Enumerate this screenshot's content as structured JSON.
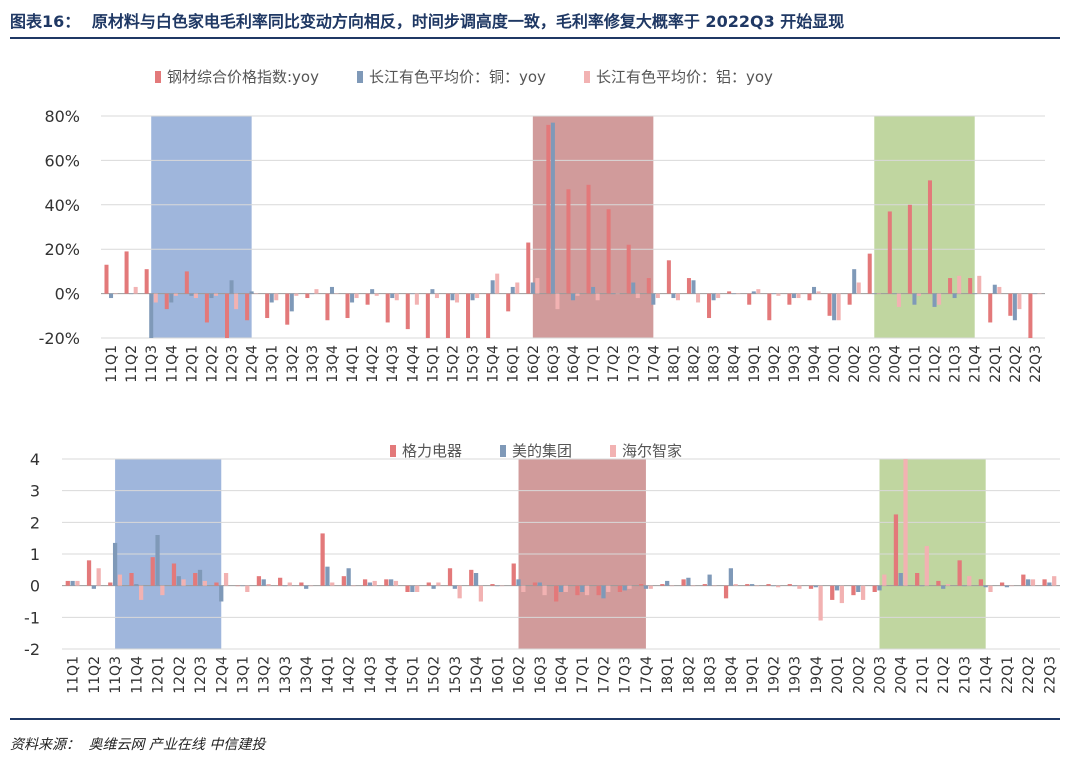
{
  "header": {
    "label": "图表16：",
    "title": "原材料与白色家电毛利率同比变动方向相反，时间步调高度一致，毛利率修复大概率于 2022Q3 开始显现"
  },
  "footer": {
    "label": "资料来源：",
    "sources": "奥维云网  产业在线  中信建投"
  },
  "chart_data": [
    {
      "type": "bar",
      "legend_position": "top",
      "grid": true,
      "ylim": [
        -0.2,
        0.8
      ],
      "yticks": [
        -0.2,
        0,
        0.2,
        0.4,
        0.6,
        0.8
      ],
      "ytick_labels": [
        "-20%",
        "0%",
        "20%",
        "40%",
        "60%",
        "80%"
      ],
      "categories": [
        "11Q1",
        "11Q2",
        "11Q3",
        "11Q4",
        "12Q1",
        "12Q2",
        "12Q3",
        "12Q4",
        "13Q1",
        "13Q2",
        "13Q3",
        "13Q4",
        "14Q1",
        "14Q2",
        "14Q3",
        "14Q4",
        "15Q1",
        "15Q2",
        "15Q3",
        "15Q4",
        "16Q1",
        "16Q2",
        "16Q3",
        "16Q4",
        "17Q1",
        "17Q2",
        "17Q3",
        "17Q4",
        "18Q1",
        "18Q2",
        "18Q3",
        "18Q4",
        "19Q1",
        "19Q2",
        "19Q3",
        "19Q4",
        "20Q1",
        "20Q2",
        "20Q3",
        "20Q4",
        "21Q1",
        "21Q2",
        "21Q3",
        "21Q4",
        "22Q1",
        "22Q2",
        "22Q3"
      ],
      "xtick_labels": [
        "11Q1",
        "11Q2",
        "11Q3",
        "11Q4",
        "12Q1",
        "12Q2",
        "12Q3",
        "12Q4",
        "13Q1",
        "13Q2",
        "13Q3",
        "13Q4",
        "14Q1",
        "14Q2",
        "14Q3",
        "14Q4",
        "15Q1",
        "15Q2",
        "15Q3",
        "15Q4",
        "16Q1",
        "16Q2",
        "16Q3",
        "16Q4",
        "17Q1",
        "17Q2",
        "17Q3",
        "17Q4",
        "18Q1",
        "18Q2",
        "18Q3",
        "18Q4",
        "19Q1",
        "19Q2",
        "19Q3",
        "19Q4",
        "20Q1",
        "20Q2",
        "20Q3",
        "20Q4",
        "21Q1",
        "21Q2",
        "21Q3",
        "21Q4",
        "22Q1",
        "22Q2",
        "22Q3"
      ],
      "highlight_regions": [
        {
          "from": "11Q3",
          "to": "12Q3",
          "color": "#8ea9d6"
        },
        {
          "from": "16Q2",
          "to": "17Q3",
          "color": "#c98a8a"
        },
        {
          "from": "20Q3",
          "to": "21Q3",
          "color": "#b5cf8f"
        }
      ],
      "series": [
        {
          "name": "钢材综合价格指数:yoy",
          "color": "#e3797a",
          "values": [
            0.13,
            0.19,
            0.11,
            -0.07,
            0.1,
            -0.13,
            -0.2,
            -0.12,
            -0.11,
            -0.14,
            -0.02,
            -0.12,
            -0.11,
            -0.05,
            -0.13,
            -0.16,
            -0.2,
            -0.2,
            -0.2,
            -0.2,
            -0.08,
            0.23,
            0.76,
            0.47,
            0.49,
            0.38,
            0.22,
            0.07,
            0.15,
            0.07,
            -0.11,
            0.01,
            -0.05,
            -0.12,
            -0.05,
            -0.03,
            -0.1,
            -0.05,
            0.18,
            0.37,
            0.4,
            0.51,
            0.07,
            0.07,
            -0.13,
            -0.1,
            -0.2
          ]
        },
        {
          "name": "长江有色平均价：铜：yoy",
          "color": "#7f99b8",
          "values": [
            -0.02,
            0.0,
            -0.2,
            -0.04,
            -0.01,
            -0.02,
            0.06,
            0.01,
            -0.04,
            -0.08,
            0.0,
            0.03,
            -0.04,
            0.02,
            -0.02,
            0.0,
            0.02,
            -0.03,
            -0.03,
            0.06,
            0.03,
            0.05,
            0.77,
            -0.03,
            0.03,
            0.0,
            0.05,
            -0.05,
            -0.02,
            0.06,
            -0.03,
            0.0,
            0.01,
            0.0,
            -0.02,
            0.03,
            -0.12,
            0.11,
            0.0,
            0.0,
            -0.05,
            -0.06,
            -0.02,
            0.0,
            0.04,
            -0.12,
            0.0
          ]
        },
        {
          "name": "长江有色平均价：铝：yoy",
          "color": "#f2b2b2",
          "values": [
            0.0,
            0.03,
            -0.04,
            -0.01,
            -0.02,
            -0.01,
            -0.07,
            0.0,
            -0.03,
            -0.01,
            0.02,
            0.0,
            -0.02,
            -0.01,
            -0.03,
            -0.05,
            -0.02,
            -0.04,
            -0.02,
            0.09,
            0.05,
            0.07,
            -0.07,
            -0.01,
            -0.03,
            0.0,
            -0.02,
            -0.02,
            -0.03,
            -0.04,
            -0.02,
            0.0,
            0.02,
            -0.01,
            -0.02,
            0.01,
            -0.12,
            0.05,
            0.0,
            -0.06,
            -0.01,
            -0.05,
            0.08,
            0.08,
            0.03,
            -0.07,
            0.0
          ]
        }
      ]
    },
    {
      "type": "bar",
      "legend_position": "top",
      "grid": true,
      "ylim": [
        -2,
        4
      ],
      "yticks": [
        -2,
        -1,
        0,
        1,
        2,
        3,
        4
      ],
      "ytick_labels": [
        "-2",
        "-1",
        "0",
        "1",
        "2",
        "3",
        "4"
      ],
      "categories": [
        "11Q1",
        "11Q2",
        "11Q3",
        "11Q4",
        "12Q1",
        "12Q2",
        "12Q3",
        "12Q4",
        "13Q1",
        "13Q2",
        "13Q3",
        "13Q4",
        "14Q1",
        "14Q2",
        "14Q3",
        "14Q4",
        "15Q1",
        "15Q2",
        "15Q3",
        "15Q4",
        "16Q1",
        "16Q2",
        "16Q3",
        "16Q4",
        "17Q1",
        "17Q2",
        "17Q3",
        "17Q4",
        "18Q1",
        "18Q2",
        "18Q3",
        "18Q4",
        "19Q1",
        "19Q2",
        "19Q3",
        "19Q4",
        "20Q1",
        "20Q2",
        "20Q3",
        "20Q4",
        "21Q1",
        "21Q2",
        "21Q3",
        "21Q4",
        "22Q1",
        "22Q2",
        "22Q3"
      ],
      "xtick_labels": [
        "11Q1",
        "11Q2",
        "11Q3",
        "11Q4",
        "12Q1",
        "12Q2",
        "12Q3",
        "12Q4",
        "13Q1",
        "13Q2",
        "13Q3",
        "13Q4",
        "14Q1",
        "14Q2",
        "14Q3",
        "14Q4",
        "15Q1",
        "15Q2",
        "15Q3",
        "15Q4",
        "16Q1",
        "16Q2",
        "16Q3",
        "16Q4",
        "17Q1",
        "17Q2",
        "17Q3",
        "17Q4",
        "18Q1",
        "18Q2",
        "18Q3",
        "18Q4",
        "19Q1",
        "19Q2",
        "19Q3",
        "19Q4",
        "20Q1",
        "20Q2",
        "20Q3",
        "20Q4",
        "21Q1",
        "21Q2",
        "21Q3",
        "21Q4",
        "22Q1",
        "22Q2",
        "22Q3"
      ],
      "highlight_regions": [
        {
          "from": "11Q3",
          "to": "12Q3",
          "color": "#8ea9d6"
        },
        {
          "from": "16Q2",
          "to": "17Q3",
          "color": "#c98a8a"
        },
        {
          "from": "20Q3",
          "to": "21Q3",
          "color": "#b5cf8f"
        }
      ],
      "series": [
        {
          "name": "格力电器",
          "color": "#e3797a",
          "values": [
            0.15,
            0.8,
            0.1,
            0.4,
            0.9,
            0.7,
            0.4,
            0.1,
            0.0,
            0.3,
            0.25,
            0.1,
            1.65,
            0.3,
            0.2,
            0.2,
            -0.2,
            0.1,
            0.55,
            0.5,
            0.05,
            0.7,
            0.1,
            -0.5,
            -0.3,
            -0.3,
            -0.2,
            0.05,
            0.05,
            0.2,
            0.05,
            -0.4,
            0.05,
            0.05,
            0.05,
            -0.1,
            -0.45,
            -0.3,
            -0.2,
            2.25,
            0.4,
            0.15,
            0.8,
            0.2,
            0.1,
            0.35,
            0.2
          ]
        },
        {
          "name": "美的集团",
          "color": "#7f99b8",
          "values": [
            0.15,
            -0.1,
            1.35,
            0.05,
            1.6,
            0.3,
            0.5,
            -0.5,
            0.0,
            0.2,
            0.0,
            -0.1,
            0.6,
            0.55,
            0.1,
            0.2,
            -0.2,
            -0.1,
            -0.1,
            0.4,
            0.0,
            0.2,
            0.1,
            -0.2,
            -0.2,
            -0.4,
            -0.15,
            -0.1,
            0.15,
            0.25,
            0.35,
            0.55,
            0.05,
            0.0,
            0.0,
            -0.05,
            -0.15,
            -0.2,
            -0.15,
            0.4,
            0.0,
            -0.1,
            0.0,
            -0.05,
            -0.05,
            0.2,
            0.1
          ]
        },
        {
          "name": "海尔智家",
          "color": "#f2b2b2",
          "values": [
            0.15,
            0.55,
            0.35,
            -0.45,
            -0.3,
            0.2,
            0.15,
            0.4,
            -0.2,
            0.05,
            0.1,
            0.0,
            0.1,
            0.0,
            0.15,
            0.15,
            -0.2,
            0.1,
            -0.4,
            -0.5,
            0.0,
            -0.2,
            -0.3,
            -0.2,
            -0.3,
            -0.2,
            -0.1,
            -0.1,
            0.0,
            0.0,
            0.0,
            0.05,
            0.0,
            -0.05,
            -0.1,
            -1.1,
            -0.55,
            -0.45,
            0.35,
            4.0,
            1.25,
            0.05,
            0.3,
            -0.2,
            0.0,
            0.2,
            0.3
          ]
        }
      ]
    }
  ]
}
